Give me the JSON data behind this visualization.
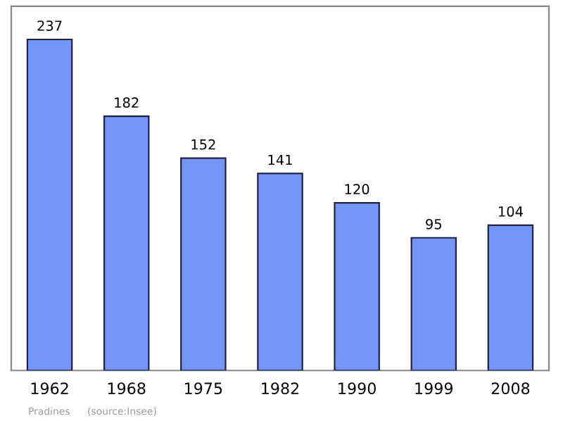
{
  "chart_data": {
    "type": "bar",
    "categories": [
      "1962",
      "1968",
      "1975",
      "1982",
      "1990",
      "1999",
      "2008"
    ],
    "values": [
      237,
      182,
      152,
      141,
      120,
      95,
      104
    ],
    "color": "#7396f7",
    "data_labels": true,
    "annotations": [
      "Pradines",
      "(source:Insee)"
    ]
  }
}
